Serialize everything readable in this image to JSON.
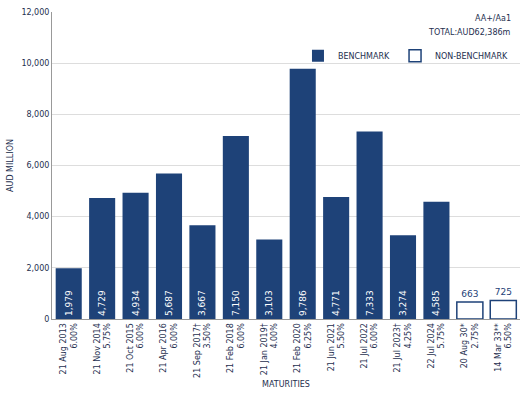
{
  "chart_data": {
    "type": "bar",
    "categories": [
      [
        "21 Aug 2013",
        "6.00%"
      ],
      [
        "21 Nov 2014",
        "5.75%"
      ],
      [
        "21 Oct 2015",
        "6.00%"
      ],
      [
        "21 Apr 2016",
        "6.00%"
      ],
      [
        "21 Sep 2017†",
        "3.50%"
      ],
      [
        "21 Feb 2018",
        "6.00%"
      ],
      [
        "21 Jan 2019†",
        "4.00%"
      ],
      [
        "21 Feb 2020",
        "6.25%"
      ],
      [
        "21 Jun 2021",
        "5.50%"
      ],
      [
        "21 Jul 2022",
        "6.00%"
      ],
      [
        "21 Jul 2023†",
        "4.25%"
      ],
      [
        "22 Jul 2024",
        "5.75%"
      ],
      [
        "20 Aug 30*",
        "2.75%"
      ],
      [
        "14 Mar 33**",
        "6.50%"
      ]
    ],
    "series": [
      {
        "name": "BENCHMARK",
        "color": "#1e4278",
        "marker": "solid",
        "values": [
          1979,
          4729,
          4934,
          5687,
          3667,
          7150,
          3103,
          9786,
          4771,
          7333,
          3274,
          4585,
          null,
          null
        ],
        "value_labels": [
          "1,979",
          "4,729",
          "4,934",
          "5,687",
          "3,667",
          "7,150",
          "3,103",
          "9,786",
          "4,771",
          "7,333",
          "3,274",
          "4,585",
          null,
          null
        ]
      },
      {
        "name": "NON-BENCHMARK",
        "color": "#1e4278",
        "marker": "hollow",
        "values": [
          null,
          null,
          null,
          null,
          null,
          null,
          null,
          null,
          null,
          null,
          null,
          null,
          663,
          725
        ],
        "value_labels": [
          null,
          null,
          null,
          null,
          null,
          null,
          null,
          null,
          null,
          null,
          null,
          null,
          "663",
          "725"
        ]
      }
    ],
    "x_label": "MATURITIES",
    "y_label": "AUD MILLION",
    "annotations": [
      "AA+/Aa1",
      "TOTAL:AUD62,386m"
    ],
    "ylim": [
      0,
      12000
    ],
    "yticks": [
      0,
      {
        "value": 2000,
        "label": "2,000"
      },
      {
        "value": 4000,
        "label": "4,000"
      },
      {
        "value": 6000,
        "label": "6,000"
      },
      {
        "value": 8000,
        "label": "8,000"
      },
      {
        "value": 10000,
        "label": "10,000"
      },
      {
        "value": 12000,
        "label": "12,000"
      }
    ],
    "grid": true,
    "legend": "top right",
    "data_labels": true
  }
}
